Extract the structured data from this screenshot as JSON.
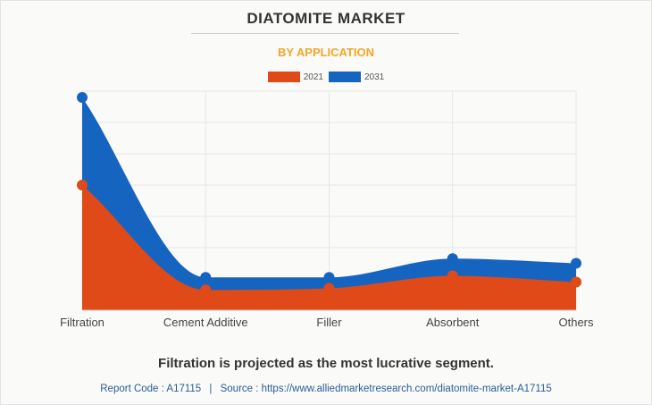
{
  "header": {
    "title": "DIATOMITE MARKET",
    "subtitle": "BY APPLICATION"
  },
  "colors": {
    "series_2021": "#e04a18",
    "series_2031": "#1565c0",
    "grid": "#e6e6e6",
    "subtitle": "#f5a623"
  },
  "footer": {
    "headline": "Filtration is projected as the most lucrative segment.",
    "report_code_label": "Report Code : A17115",
    "separator": "|",
    "source_label": "Source : https://www.alliedmarketresearch.com/diatomite-market-A17115"
  },
  "chart_data": {
    "type": "area",
    "title": "DIATOMITE MARKET",
    "subtitle": "BY APPLICATION",
    "categories": [
      "Filtration",
      "Cement Additive",
      "Filler",
      "Absorbent",
      "Others"
    ],
    "series": [
      {
        "name": "2021",
        "values": [
          40,
          6.5,
          7,
          11,
          9
        ]
      },
      {
        "name": "2031",
        "values": [
          68,
          10.5,
          10.5,
          16.5,
          15
        ]
      }
    ],
    "ylim": [
      0,
      70
    ],
    "grid": true,
    "y_axis_labels_shown": false,
    "legend_position": "top-center"
  }
}
